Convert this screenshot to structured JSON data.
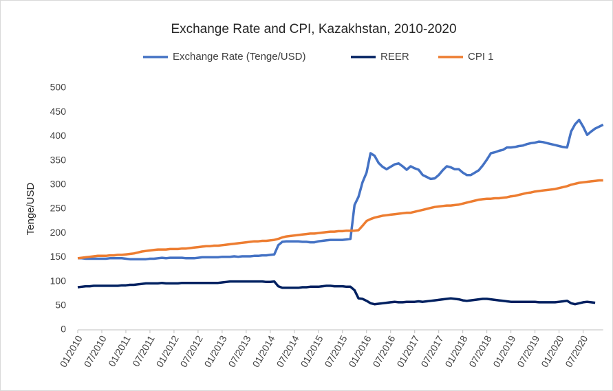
{
  "chart_data": {
    "type": "line",
    "title": "Exchange Rate and CPI, Kazakhstan, 2010-2020",
    "y_label": "Tenge/USD",
    "categories": [
      "01/2010",
      null,
      null,
      null,
      null,
      null,
      "07/2010",
      null,
      null,
      null,
      null,
      null,
      "01/2011",
      null,
      null,
      null,
      null,
      null,
      "07/2011",
      null,
      null,
      null,
      null,
      null,
      "01/2012",
      null,
      null,
      null,
      null,
      null,
      "07/2012",
      null,
      null,
      null,
      null,
      null,
      "01/2013",
      null,
      null,
      null,
      null,
      null,
      "07/2013",
      null,
      null,
      null,
      null,
      null,
      "01/2014",
      null,
      null,
      null,
      null,
      null,
      "07/2014",
      null,
      null,
      null,
      null,
      null,
      "01/2015",
      null,
      null,
      null,
      null,
      null,
      "07/2015",
      null,
      null,
      null,
      null,
      null,
      "01/2016",
      null,
      null,
      null,
      null,
      null,
      "07/2016",
      null,
      null,
      null,
      null,
      null,
      "01/2017",
      null,
      null,
      null,
      null,
      null,
      "07/2017",
      null,
      null,
      null,
      null,
      null,
      "01/2018",
      null,
      null,
      null,
      null,
      null,
      "07/2018",
      null,
      null,
      null,
      null,
      null,
      "01/2019",
      null,
      null,
      null,
      null,
      null,
      "07/2019",
      null,
      null,
      null,
      null,
      null,
      "01/2020",
      null,
      null,
      null,
      null,
      null,
      "07/2020",
      null,
      null,
      null,
      null,
      null
    ],
    "series": [
      {
        "name": "Exchange Rate (Tenge/USD)",
        "color": "#4472c4",
        "values": [
          148,
          148,
          147,
          147,
          147,
          147,
          147,
          147,
          148,
          148,
          148,
          148,
          147,
          146,
          146,
          146,
          146,
          146,
          147,
          147,
          148,
          149,
          148,
          149,
          149,
          149,
          149,
          148,
          148,
          148,
          149,
          150,
          150,
          150,
          150,
          150,
          151,
          151,
          151,
          152,
          151,
          152,
          152,
          152,
          153,
          153,
          154,
          154,
          155,
          156,
          175,
          182,
          183,
          183,
          183,
          183,
          182,
          182,
          181,
          181,
          183,
          184,
          185,
          186,
          186,
          186,
          186,
          187,
          188,
          258,
          275,
          305,
          325,
          365,
          360,
          345,
          337,
          332,
          337,
          342,
          344,
          338,
          331,
          338,
          334,
          331,
          320,
          316,
          312,
          313,
          320,
          330,
          338,
          336,
          332,
          332,
          325,
          320,
          320,
          325,
          330,
          340,
          352,
          365,
          367,
          370,
          372,
          377,
          377,
          378,
          380,
          381,
          384,
          386,
          387,
          389,
          388,
          386,
          384,
          382,
          380,
          378,
          377,
          410,
          425,
          434,
          420,
          403,
          410,
          416,
          420,
          424
        ]
      },
      {
        "name": "REER",
        "color": "#002060",
        "values": [
          88,
          89,
          90,
          90,
          91,
          91,
          91,
          91,
          91,
          91,
          91,
          92,
          92,
          93,
          93,
          94,
          95,
          96,
          96,
          96,
          96,
          97,
          96,
          96,
          96,
          96,
          97,
          97,
          97,
          97,
          97,
          97,
          97,
          97,
          97,
          97,
          98,
          99,
          100,
          100,
          100,
          100,
          100,
          100,
          100,
          100,
          100,
          99,
          99,
          100,
          90,
          87,
          87,
          87,
          87,
          87,
          88,
          88,
          89,
          89,
          89,
          90,
          91,
          91,
          90,
          90,
          90,
          89,
          89,
          82,
          65,
          64,
          60,
          55,
          53,
          54,
          55,
          56,
          57,
          58,
          57,
          57,
          58,
          58,
          58,
          59,
          58,
          59,
          60,
          61,
          62,
          63,
          64,
          65,
          64,
          63,
          61,
          60,
          61,
          62,
          63,
          64,
          64,
          63,
          62,
          61,
          60,
          59,
          58,
          58,
          58,
          58,
          58,
          58,
          58,
          57,
          57,
          57,
          57,
          57,
          58,
          59,
          60,
          55,
          53,
          55,
          57,
          58,
          57,
          56,
          null,
          null
        ]
      },
      {
        "name": "CPI 1",
        "color": "#ed7d31",
        "values": [
          148,
          149,
          150,
          151,
          152,
          153,
          153,
          153,
          154,
          154,
          155,
          155,
          156,
          157,
          158,
          160,
          162,
          163,
          164,
          165,
          166,
          166,
          166,
          167,
          167,
          167,
          168,
          168,
          169,
          170,
          171,
          172,
          173,
          173,
          174,
          174,
          175,
          176,
          177,
          178,
          179,
          180,
          181,
          182,
          183,
          183,
          184,
          184,
          185,
          186,
          188,
          191,
          193,
          194,
          195,
          196,
          197,
          198,
          199,
          199,
          200,
          201,
          202,
          203,
          203,
          204,
          204,
          205,
          205,
          205,
          206,
          215,
          225,
          229,
          232,
          234,
          236,
          237,
          238,
          239,
          240,
          241,
          242,
          242,
          244,
          246,
          248,
          250,
          252,
          254,
          255,
          256,
          257,
          257,
          258,
          259,
          261,
          263,
          265,
          267,
          269,
          270,
          271,
          271,
          272,
          272,
          273,
          274,
          276,
          277,
          279,
          281,
          283,
          284,
          286,
          287,
          288,
          289,
          290,
          291,
          293,
          295,
          297,
          300,
          302,
          304,
          305,
          306,
          307,
          308,
          309,
          309
        ]
      }
    ],
    "ylim": [
      0,
      500
    ],
    "yticks": [
      0,
      50,
      100,
      150,
      200,
      250,
      300,
      350,
      400,
      450,
      500
    ],
    "grid": false,
    "legend": "top"
  }
}
